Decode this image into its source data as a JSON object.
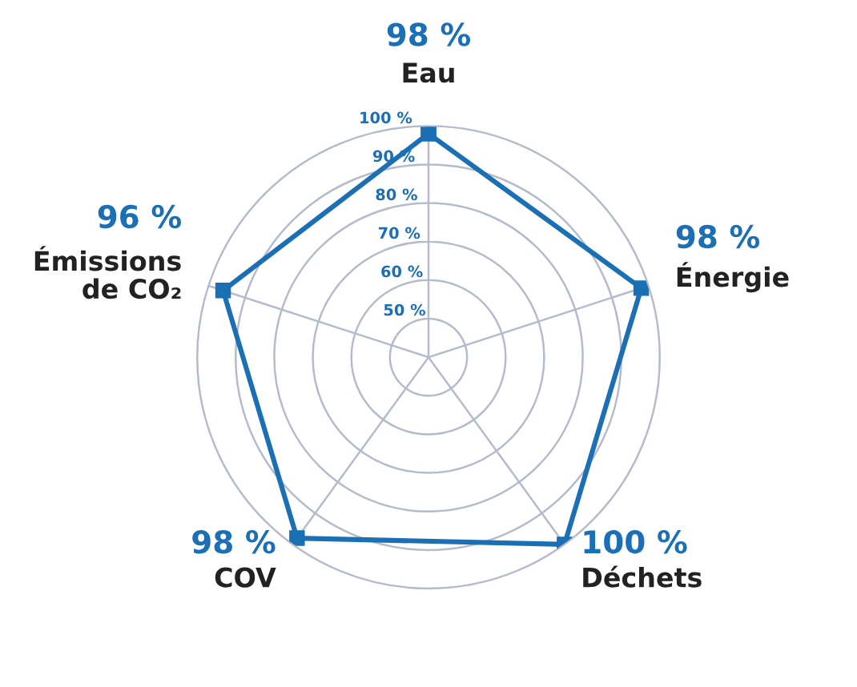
{
  "chart_data": {
    "type": "radar",
    "categories": [
      "Eau",
      "Énergie",
      "Déchets",
      "COV",
      "Émissions\nde CO₂"
    ],
    "series": [
      {
        "color": "#1a6fb5",
        "values": [
          98,
          98,
          100,
          98,
          96
        ],
        "value_labels": [
          "98 %",
          "98 %",
          "100 %",
          "98 %",
          "96 %"
        ]
      }
    ],
    "ylim": [
      40,
      100
    ],
    "yticks": [
      {
        "value": 50,
        "label": "50 %"
      },
      {
        "value": 60,
        "label": "60 %"
      },
      {
        "value": 70,
        "label": "70 %"
      },
      {
        "value": 80,
        "label": "80 %"
      },
      {
        "value": 90,
        "label": "90 %"
      },
      {
        "value": 100,
        "label": "100 %"
      }
    ],
    "grid": true,
    "legend": false,
    "marker": "square",
    "line_style": "solid"
  }
}
